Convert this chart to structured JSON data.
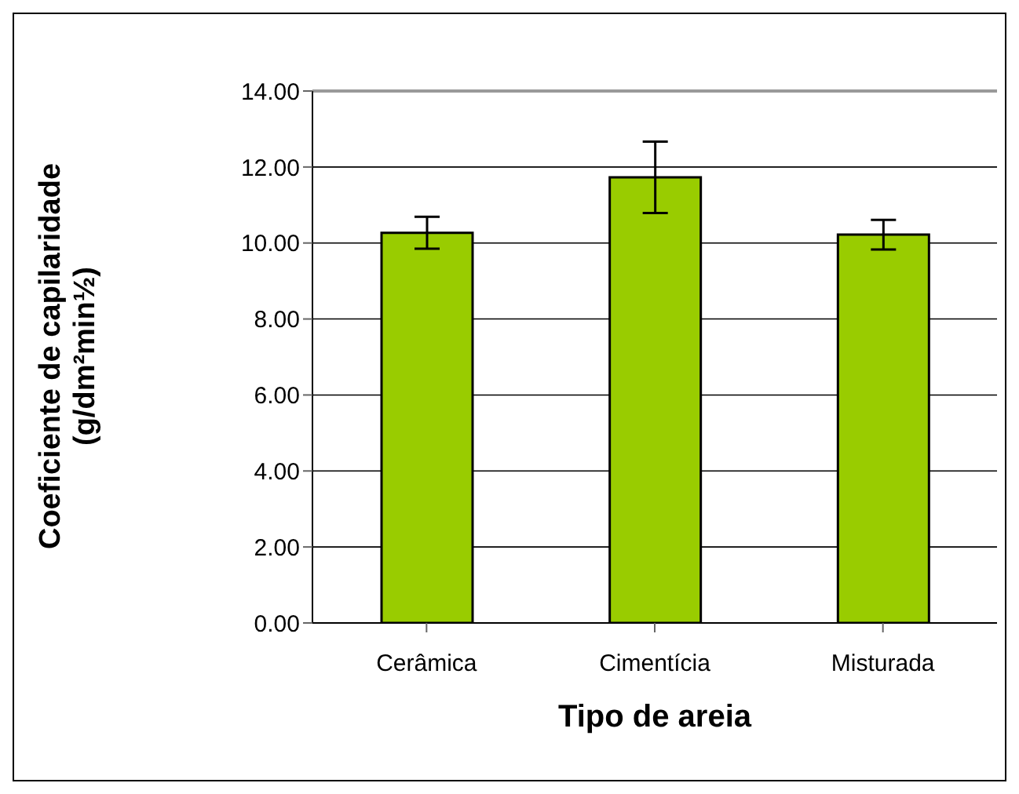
{
  "chart_data": {
    "type": "bar",
    "xlabel": "Tipo de areia",
    "ylabel": "Coeficiente de capilaridade\n(g/dm²min½)",
    "categories": [
      "Cerâmica",
      "Cimentícia",
      "Misturada"
    ],
    "values": [
      10.27,
      11.73,
      10.22
    ],
    "errors": [
      0.42,
      0.94,
      0.39
    ],
    "color": "#99cc00",
    "ylim": [
      0,
      14
    ],
    "yticks": [
      {
        "value": 0,
        "label": "0.00"
      },
      {
        "value": 2,
        "label": "2.00"
      },
      {
        "value": 4,
        "label": "4.00"
      },
      {
        "value": 6,
        "label": "6.00"
      },
      {
        "value": 8,
        "label": "8.00"
      },
      {
        "value": 10,
        "label": "10.00"
      },
      {
        "value": 12,
        "label": "12.00"
      },
      {
        "value": 14,
        "label": "14.00"
      }
    ],
    "grid": "y"
  }
}
